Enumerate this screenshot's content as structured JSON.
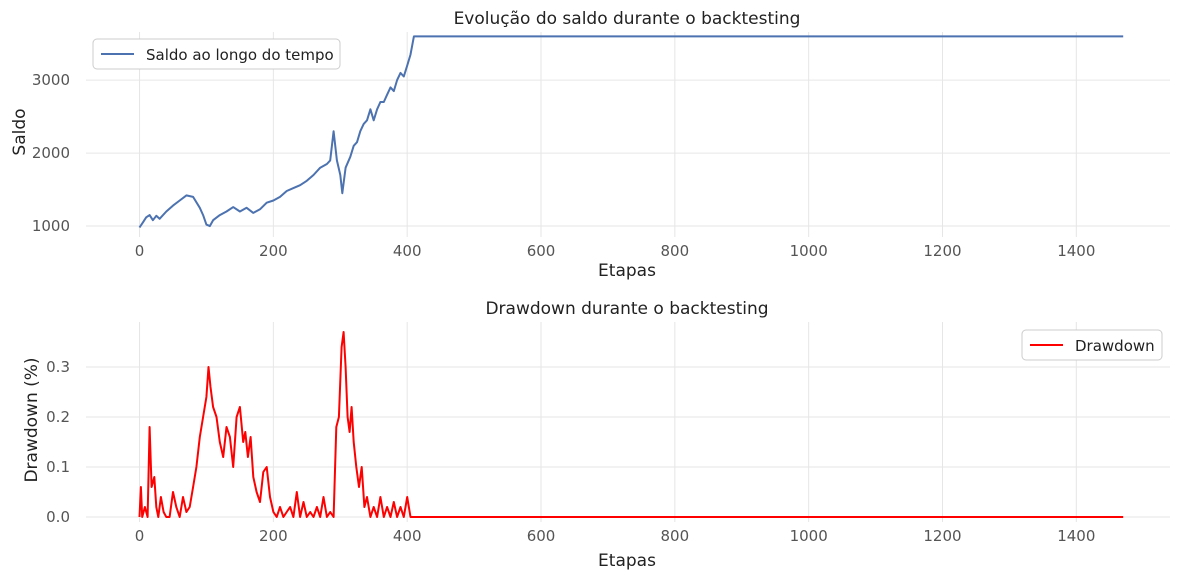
{
  "chart_data": [
    {
      "type": "line",
      "title": "Evolução do saldo durante o backtesting",
      "xlabel": "Etapas",
      "ylabel": "Saldo",
      "xlim": [
        -80,
        1540
      ],
      "ylim": [
        850,
        3660
      ],
      "xticks": [
        0,
        200,
        400,
        600,
        800,
        1000,
        1200,
        1400
      ],
      "yticks": [
        1000,
        2000,
        3000
      ],
      "grid": true,
      "legend": {
        "placement": "top-left"
      },
      "colors": {
        "line": "#4c72b0"
      },
      "series": [
        {
          "name": "Saldo ao longo do tempo",
          "x": [
            0,
            5,
            10,
            15,
            20,
            25,
            30,
            40,
            50,
            60,
            70,
            80,
            90,
            95,
            100,
            105,
            110,
            120,
            130,
            140,
            150,
            160,
            170,
            180,
            190,
            200,
            210,
            220,
            230,
            240,
            250,
            260,
            270,
            280,
            285,
            290,
            295,
            300,
            303,
            308,
            315,
            320,
            325,
            330,
            335,
            340,
            345,
            350,
            355,
            360,
            365,
            370,
            375,
            380,
            385,
            390,
            395,
            400,
            405,
            410,
            1470
          ],
          "y": [
            980,
            1050,
            1120,
            1150,
            1080,
            1140,
            1100,
            1200,
            1280,
            1350,
            1420,
            1400,
            1250,
            1150,
            1020,
            1000,
            1080,
            1150,
            1200,
            1260,
            1200,
            1250,
            1180,
            1230,
            1320,
            1350,
            1400,
            1480,
            1520,
            1560,
            1620,
            1700,
            1800,
            1850,
            1900,
            2300,
            1900,
            1700,
            1450,
            1800,
            1950,
            2100,
            2150,
            2300,
            2400,
            2450,
            2600,
            2450,
            2600,
            2700,
            2700,
            2800,
            2900,
            2850,
            3000,
            3100,
            3050,
            3200,
            3350,
            3600,
            3600
          ]
        }
      ]
    },
    {
      "type": "line",
      "title": "Drawdown durante o backtesting",
      "xlabel": "Etapas",
      "ylabel": "Drawdown (%)",
      "xlim": [
        -80,
        1540
      ],
      "ylim": [
        -0.01,
        0.39
      ],
      "xticks": [
        0,
        200,
        400,
        600,
        800,
        1000,
        1200,
        1400
      ],
      "yticks": [
        0.0,
        0.1,
        0.2,
        0.3
      ],
      "grid": true,
      "legend": {
        "placement": "top-right"
      },
      "colors": {
        "line": "#ff0000"
      },
      "series": [
        {
          "name": "Drawdown",
          "x": [
            0,
            2,
            4,
            8,
            12,
            15,
            18,
            22,
            25,
            28,
            32,
            36,
            40,
            45,
            50,
            55,
            60,
            65,
            70,
            75,
            80,
            85,
            90,
            95,
            100,
            103,
            106,
            110,
            115,
            120,
            125,
            130,
            135,
            140,
            145,
            150,
            155,
            158,
            162,
            166,
            170,
            175,
            180,
            185,
            190,
            195,
            200,
            205,
            210,
            215,
            220,
            225,
            230,
            235,
            240,
            245,
            250,
            255,
            260,
            265,
            270,
            275,
            280,
            285,
            290,
            294,
            298,
            302,
            305,
            308,
            311,
            314,
            317,
            320,
            324,
            328,
            332,
            336,
            340,
            345,
            350,
            355,
            360,
            365,
            370,
            375,
            380,
            385,
            390,
            395,
            400,
            405,
            410,
            1470
          ],
          "y": [
            0.0,
            0.06,
            0.0,
            0.02,
            0.0,
            0.18,
            0.06,
            0.08,
            0.02,
            0.0,
            0.04,
            0.01,
            0.0,
            0.0,
            0.05,
            0.02,
            0.0,
            0.04,
            0.01,
            0.02,
            0.06,
            0.1,
            0.16,
            0.2,
            0.24,
            0.3,
            0.26,
            0.22,
            0.2,
            0.15,
            0.12,
            0.18,
            0.16,
            0.1,
            0.2,
            0.22,
            0.15,
            0.17,
            0.12,
            0.16,
            0.08,
            0.05,
            0.03,
            0.09,
            0.1,
            0.04,
            0.01,
            0.0,
            0.02,
            0.0,
            0.01,
            0.02,
            0.0,
            0.05,
            0.0,
            0.03,
            0.0,
            0.01,
            0.0,
            0.02,
            0.0,
            0.04,
            0.0,
            0.01,
            0.0,
            0.18,
            0.2,
            0.34,
            0.37,
            0.3,
            0.2,
            0.17,
            0.22,
            0.15,
            0.1,
            0.06,
            0.1,
            0.02,
            0.04,
            0.0,
            0.02,
            0.0,
            0.04,
            0.0,
            0.02,
            0.0,
            0.03,
            0.0,
            0.02,
            0.0,
            0.04,
            0.0,
            0.0,
            0.0
          ]
        }
      ]
    }
  ]
}
